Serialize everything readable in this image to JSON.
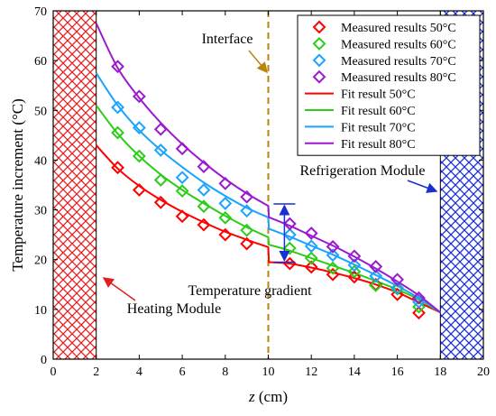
{
  "chart_data": {
    "type": "line",
    "xlabel_italic": "z",
    "xlabel_rest": " (cm)",
    "ylabel": "Temperature increment (°C)",
    "xlim": [
      0,
      20
    ],
    "ylim": [
      0,
      70
    ],
    "xticks": [
      "0",
      "2",
      "4",
      "6",
      "8",
      "10",
      "12",
      "14",
      "16",
      "18",
      "20"
    ],
    "yticks": [
      "0",
      "10",
      "20",
      "30",
      "40",
      "50",
      "60",
      "70"
    ],
    "grid": false,
    "legend_placement": "top-right",
    "heating_region": [
      0,
      2
    ],
    "cooling_region": [
      18,
      20
    ],
    "interface_x": 10,
    "series": [
      {
        "name": "Measured results 50°C",
        "fit_name": "Fit result 50°C",
        "color": "#ff0000",
        "measured": [
          [
            3,
            38.5
          ],
          [
            4,
            34.0
          ],
          [
            5,
            31.5
          ],
          [
            6,
            28.7
          ],
          [
            7,
            27.0
          ],
          [
            8,
            25.0
          ],
          [
            9,
            23.2
          ],
          [
            11,
            19.2
          ],
          [
            12,
            18.5
          ],
          [
            13,
            17.0
          ],
          [
            14,
            16.5
          ],
          [
            15,
            15.0
          ],
          [
            16,
            13.0
          ],
          [
            17,
            9.3
          ]
        ],
        "fit": [
          [
            2,
            43.0
          ],
          [
            3,
            38.3
          ],
          [
            4,
            34.8
          ],
          [
            5,
            32.0
          ],
          [
            6,
            29.6
          ],
          [
            7,
            27.5
          ],
          [
            8,
            25.6
          ],
          [
            9,
            24.0
          ],
          [
            10,
            22.5
          ],
          [
            10.03,
            19.5
          ],
          [
            11,
            19.2
          ],
          [
            12,
            18.4
          ],
          [
            13,
            17.4
          ],
          [
            14,
            16.3
          ],
          [
            15,
            15.0
          ],
          [
            16,
            13.4
          ],
          [
            17,
            11.4
          ],
          [
            18,
            9.4
          ]
        ]
      },
      {
        "name": "Measured results 60°C",
        "fit_name": "Fit result 60°C",
        "color": "#2ecc1a",
        "measured": [
          [
            3,
            45.5
          ],
          [
            4,
            40.8
          ],
          [
            5,
            36.0
          ],
          [
            6,
            33.8
          ],
          [
            7,
            30.7
          ],
          [
            8,
            28.4
          ],
          [
            9,
            25.9
          ],
          [
            11,
            22.3
          ],
          [
            12,
            20.3
          ],
          [
            13,
            18.3
          ],
          [
            14,
            17.6
          ],
          [
            15,
            14.8
          ],
          [
            16,
            14.1
          ],
          [
            17,
            10.5
          ]
        ],
        "fit": [
          [
            2,
            51.0
          ],
          [
            3,
            45.3
          ],
          [
            4,
            40.8
          ],
          [
            5,
            37.1
          ],
          [
            6,
            34.0
          ],
          [
            7,
            31.3
          ],
          [
            8,
            28.8
          ],
          [
            9,
            26.5
          ],
          [
            10,
            24.5
          ],
          [
            10.03,
            23.0
          ],
          [
            11,
            21.8
          ],
          [
            12,
            20.3
          ],
          [
            13,
            18.8
          ],
          [
            14,
            17.3
          ],
          [
            15,
            15.7
          ],
          [
            16,
            14.0
          ],
          [
            17,
            12.0
          ],
          [
            18,
            9.4
          ]
        ]
      },
      {
        "name": "Measured results 70°C",
        "fit_name": "Fit result 70°C",
        "color": "#1aa3ff",
        "measured": [
          [
            3,
            50.6
          ],
          [
            4,
            46.5
          ],
          [
            5,
            42.0
          ],
          [
            6,
            36.5
          ],
          [
            7,
            34.0
          ],
          [
            8,
            31.3
          ],
          [
            9,
            29.8
          ],
          [
            11,
            25.0
          ],
          [
            12,
            22.7
          ],
          [
            13,
            20.9
          ],
          [
            14,
            18.9
          ],
          [
            15,
            16.7
          ],
          [
            16,
            14.3
          ],
          [
            17,
            11.5
          ]
        ],
        "fit": [
          [
            2,
            57.5
          ],
          [
            3,
            51.0
          ],
          [
            4,
            46.0
          ],
          [
            5,
            42.0
          ],
          [
            6,
            38.6
          ],
          [
            7,
            35.5
          ],
          [
            8,
            32.8
          ],
          [
            9,
            30.4
          ],
          [
            10,
            28.5
          ],
          [
            10.03,
            26.2
          ],
          [
            11,
            24.6
          ],
          [
            12,
            22.8
          ],
          [
            13,
            21.0
          ],
          [
            14,
            19.0
          ],
          [
            15,
            16.9
          ],
          [
            16,
            14.7
          ],
          [
            17,
            12.3
          ],
          [
            18,
            9.4
          ]
        ]
      },
      {
        "name": "Measured results 80°C",
        "fit_name": "Fit result 80°C",
        "color": "#9b1acf",
        "measured": [
          [
            3,
            58.8
          ],
          [
            4,
            52.8
          ],
          [
            5,
            46.2
          ],
          [
            6,
            42.3
          ],
          [
            7,
            38.7
          ],
          [
            8,
            35.3
          ],
          [
            9,
            32.6
          ],
          [
            11,
            27.2
          ],
          [
            12,
            25.3
          ],
          [
            13,
            22.6
          ],
          [
            14,
            20.7
          ],
          [
            15,
            18.6
          ],
          [
            16,
            16.0
          ],
          [
            17,
            12.3
          ]
        ],
        "fit": [
          [
            2,
            67.5
          ],
          [
            3,
            58.5
          ],
          [
            4,
            52.5
          ],
          [
            5,
            47.5
          ],
          [
            6,
            43.2
          ],
          [
            7,
            39.5
          ],
          [
            8,
            36.2
          ],
          [
            9,
            33.3
          ],
          [
            10,
            30.8
          ],
          [
            10.03,
            28.5
          ],
          [
            11,
            26.8
          ],
          [
            12,
            24.8
          ],
          [
            13,
            22.8
          ],
          [
            14,
            20.6
          ],
          [
            15,
            18.2
          ],
          [
            16,
            15.6
          ],
          [
            17,
            12.8
          ],
          [
            18,
            9.4
          ]
        ]
      }
    ],
    "annotations": {
      "interface": "Interface",
      "refrigeration": "Refrigeration Module",
      "heating": "Heating Module",
      "gradient": "Temperature gradient"
    },
    "gradient_range": [
      19.5,
      31.2
    ],
    "colors": {
      "heating_hatch": "#e02020",
      "cooling_hatch": "#1a2fd0",
      "interface_line": "#b8860b",
      "gradient_arrow": "#1a2fd0",
      "gradient_text": "#1a2fd0",
      "heating_arrow": "#e02020",
      "cooling_arrow": "#1a2fd0"
    }
  }
}
